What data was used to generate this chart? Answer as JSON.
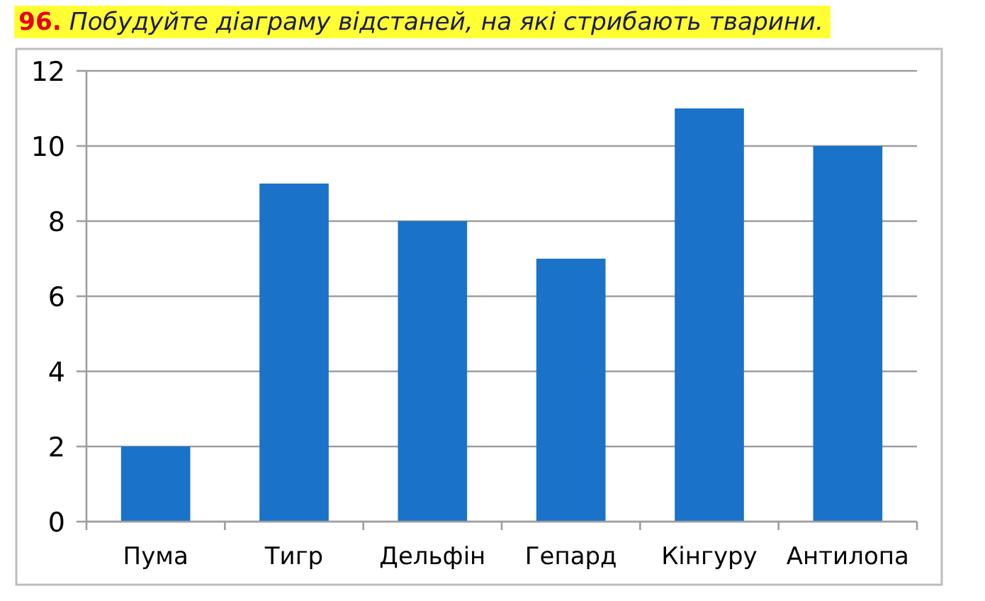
{
  "chart_data": {
    "type": "bar",
    "title": "96. Побудуйте діаграму відстаней, на які стрибають тварини.",
    "categories": [
      "Пума",
      "Тигр",
      "Дельфін",
      "Гепард",
      "Кінгуру",
      "Антилопа"
    ],
    "values": [
      2,
      9,
      8,
      7,
      11,
      10
    ],
    "color": "#1a73c8",
    "ylim": [
      0,
      12
    ],
    "yticks": [
      0,
      2,
      4,
      6,
      8,
      10,
      12
    ],
    "grid": "y"
  }
}
